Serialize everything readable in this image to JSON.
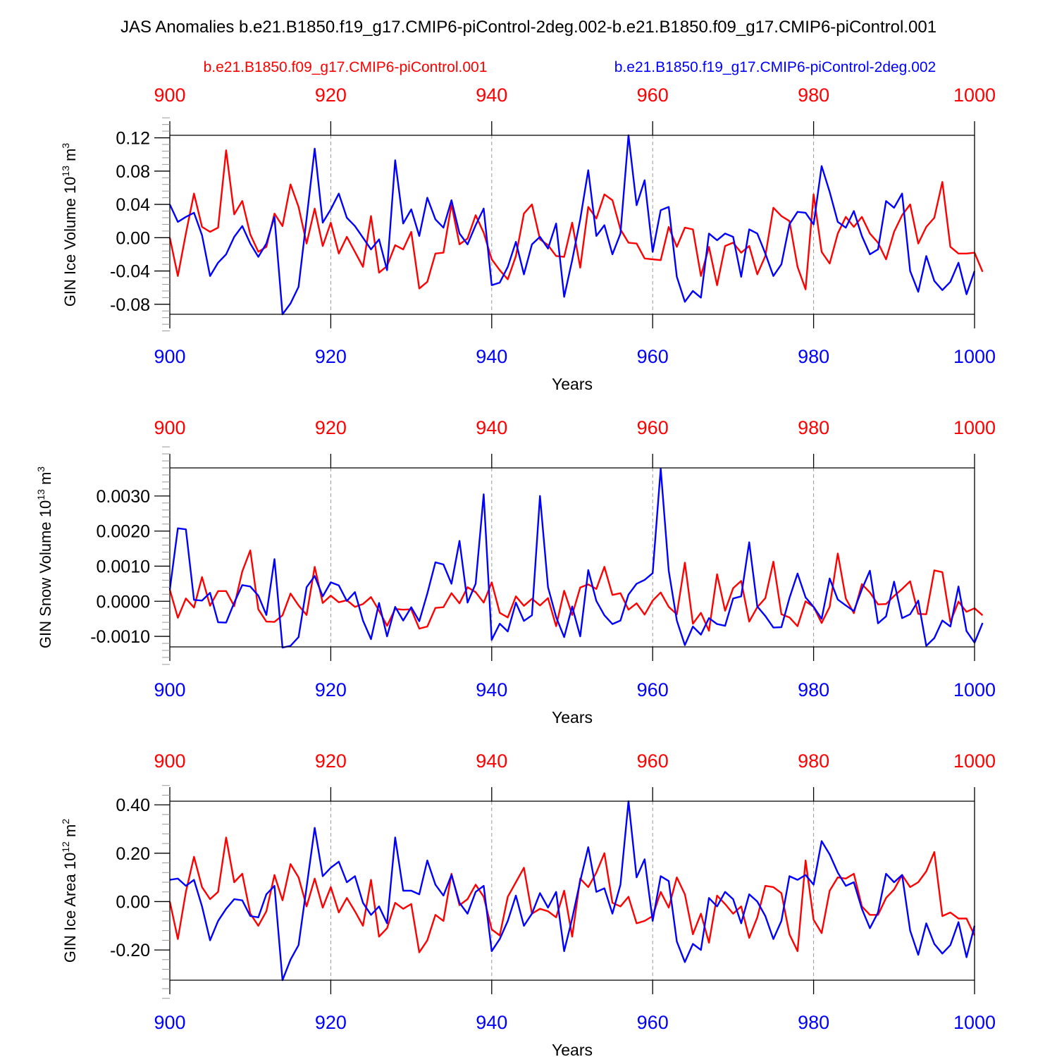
{
  "title": "JAS Anomalies b.e21.B1850.f19_g17.CMIP6-piControl-2deg.002-b.e21.B1850.f09_g17.CMIP6-piControl.001",
  "legend": {
    "red_label": "b.e21.B1850.f09_g17.CMIP6-piControl.001",
    "blue_label": "b.e21.B1850.f19_g17.CMIP6-piControl-2deg.002"
  },
  "colors": {
    "red": "#ff0000",
    "blue": "#0000ff",
    "axis": "#000000",
    "grid": "#999999"
  },
  "chart_data": [
    {
      "type": "line",
      "panel_id": "ice-volume",
      "ylabel_main": "GIN Ice Volume 10",
      "ylabel_exp": "13",
      "ylabel_unit": " m",
      "ylabel_unit_exp": "3",
      "xlabel": "Years",
      "xlim": [
        900,
        1000
      ],
      "ylim": [
        -0.092,
        0.123
      ],
      "x_ticks": [
        900,
        920,
        940,
        960,
        980,
        1000
      ],
      "x_tick_labels": [
        "900",
        "920",
        "940",
        "960",
        "980",
        "1000"
      ],
      "y_ticks": [
        -0.08,
        -0.04,
        0.0,
        0.04,
        0.08,
        0.12
      ],
      "y_tick_labels": [
        "-0.08",
        "-0.04",
        "0.00",
        "0.04",
        "0.08",
        "0.12"
      ],
      "y_minor_step": 0.008,
      "x_start": 900,
      "series": [
        {
          "name": "b.e21.B1850.f09_g17.CMIP6-piControl.001",
          "color": "red",
          "values": [
            0.0,
            -0.046,
            0.005,
            0.053,
            0.013,
            0.007,
            0.012,
            0.105,
            0.028,
            0.044,
            0.004,
            -0.017,
            -0.011,
            0.029,
            0.014,
            0.064,
            0.037,
            -0.007,
            0.035,
            -0.01,
            0.018,
            -0.019,
            0.001,
            -0.017,
            -0.035,
            0.026,
            -0.042,
            -0.034,
            -0.009,
            -0.014,
            0.007,
            -0.061,
            -0.053,
            -0.019,
            -0.018,
            0.04,
            -0.008,
            -0.001,
            0.027,
            0.006,
            -0.026,
            -0.039,
            -0.05,
            -0.022,
            0.029,
            0.04,
            -0.002,
            -0.009,
            -0.022,
            -0.023,
            0.018,
            -0.036,
            0.037,
            0.023,
            0.052,
            0.045,
            0.01,
            -0.006,
            -0.007,
            -0.025,
            -0.026,
            -0.027,
            0.013,
            -0.011,
            0.012,
            0.01,
            -0.046,
            -0.011,
            -0.057,
            -0.01,
            -0.006,
            -0.018,
            -0.01,
            -0.044,
            -0.022,
            0.036,
            0.026,
            0.02,
            -0.035,
            -0.062,
            0.052,
            -0.017,
            -0.031,
            0.005,
            0.025,
            0.013,
            0.025,
            0.005,
            -0.006,
            -0.026,
            0.007,
            0.027,
            0.04,
            -0.007,
            0.013,
            0.024,
            0.067,
            -0.011,
            -0.019,
            -0.019,
            -0.018,
            -0.041
          ]
        },
        {
          "name": "b.e21.B1850.f19_g17.CMIP6-piControl-2deg.002",
          "color": "blue",
          "values": [
            0.04,
            0.019,
            0.025,
            0.03,
            0.003,
            -0.046,
            -0.03,
            -0.02,
            0.001,
            0.014,
            -0.007,
            -0.023,
            -0.007,
            0.025,
            -0.092,
            -0.079,
            -0.059,
            0.023,
            0.107,
            0.018,
            0.034,
            0.053,
            0.024,
            0.014,
            0.0,
            -0.014,
            -0.002,
            -0.039,
            0.093,
            0.017,
            0.034,
            0.002,
            0.048,
            0.022,
            0.012,
            0.045,
            0.005,
            -0.008,
            0.015,
            0.035,
            -0.057,
            -0.054,
            -0.035,
            -0.005,
            -0.044,
            -0.008,
            0.001,
            -0.013,
            0.017,
            -0.071,
            -0.027,
            0.022,
            0.081,
            0.002,
            0.015,
            -0.02,
            0.005,
            0.123,
            0.039,
            0.069,
            -0.017,
            0.033,
            0.037,
            -0.047,
            -0.077,
            -0.064,
            -0.072,
            0.005,
            -0.003,
            0.005,
            0.001,
            -0.047,
            0.01,
            0.005,
            -0.019,
            -0.046,
            -0.032,
            0.016,
            0.031,
            0.03,
            0.016,
            0.086,
            0.055,
            0.019,
            0.012,
            0.032,
            0.002,
            -0.02,
            -0.014,
            0.044,
            0.036,
            0.053,
            -0.04,
            -0.065,
            -0.022,
            -0.052,
            -0.063,
            -0.053,
            -0.03,
            -0.068,
            -0.04
          ]
        }
      ]
    },
    {
      "type": "line",
      "panel_id": "snow-volume",
      "ylabel_main": "GIN Snow Volume 10",
      "ylabel_exp": "13",
      "ylabel_unit": " m",
      "ylabel_unit_exp": "3",
      "xlabel": "Years",
      "xlim": [
        900,
        1000
      ],
      "ylim": [
        -0.0013,
        0.0038
      ],
      "x_ticks": [
        900,
        920,
        940,
        960,
        980,
        1000
      ],
      "x_tick_labels": [
        "900",
        "920",
        "940",
        "960",
        "980",
        "1000"
      ],
      "y_ticks": [
        -0.001,
        0.0,
        0.001,
        0.002,
        0.003
      ],
      "y_tick_labels": [
        "-0.0010",
        "0.0000",
        "0.0010",
        "0.0020",
        "0.0030"
      ],
      "y_minor_step": 0.0002,
      "x_start": 900,
      "series": [
        {
          "name": "b.e21.B1850.f09_g17.CMIP6-piControl.001",
          "color": "red",
          "values": [
            0.00033,
            -0.00047,
            8e-05,
            -0.00018,
            0.00069,
            -0.00013,
            0.00029,
            0.00029,
            -0.00014,
            0.00085,
            0.00145,
            -0.00023,
            -0.00058,
            -0.00059,
            -0.0004,
            0.00022,
            -0.00012,
            -0.00039,
            0.00098,
            -5e-05,
            0.00016,
            -3e-05,
            3e-05,
            -0.00016,
            -8e-05,
            0.00012,
            -0.00027,
            -0.0007,
            -0.00022,
            -0.00024,
            -0.00023,
            -0.00078,
            -0.00072,
            -0.00019,
            -0.00017,
            0.00023,
            -6e-05,
            0.0004,
            0.00026,
            -4e-05,
            0.00054,
            -0.00033,
            -0.00046,
            0.00014,
            -0.00013,
            7e-05,
            -0.00012,
            9e-05,
            -0.00071,
            0.0003,
            -0.00039,
            0.00039,
            0.00048,
            0.00035,
            0.00098,
            0.00018,
            0.00023,
            -0.00024,
            -6e-05,
            -0.00038,
            2e-05,
            0.00025,
            -0.00016,
            -0.00037,
            0.0011,
            -0.00064,
            -0.00033,
            -0.00084,
            0.00077,
            -0.00027,
            0.00037,
            0.00058,
            -0.00058,
            -0.00017,
            9e-05,
            0.00113,
            -0.00037,
            -0.00046,
            -0.00071,
            0.0,
            -0.00016,
            -0.00062,
            -0.00016,
            0.00136,
            8e-05,
            -0.00034,
            0.00049,
            0.00025,
            -9e-05,
            -8e-05,
            0.00015,
            0.00035,
            0.00057,
            -0.00036,
            -0.00037,
            0.00088,
            0.00083,
            -0.00059,
            -1e-05,
            -0.0003,
            -0.0002,
            -0.0004
          ]
        },
        {
          "name": "b.e21.B1850.f19_g17.CMIP6-piControl-2deg.002",
          "color": "blue",
          "values": [
            0.00033,
            0.00208,
            0.00205,
            4e-05,
            2e-05,
            0.00024,
            -0.0006,
            -0.00061,
            -4e-05,
            0.00046,
            0.00042,
            0.00016,
            -0.00039,
            0.0012,
            -0.00132,
            -0.00127,
            -0.00102,
            0.0004,
            0.00072,
            0.00014,
            0.00054,
            0.00045,
            1e-05,
            0.00026,
            -0.00055,
            -0.00108,
            -5e-05,
            -0.001,
            -0.00016,
            -0.00055,
            -0.00017,
            -0.00057,
            0.00022,
            0.00111,
            0.00105,
            0.0005,
            0.00172,
            -4e-05,
            0.0005,
            0.00305,
            -0.0011,
            -0.00064,
            -0.00086,
            -4e-05,
            -0.00056,
            -0.0004,
            0.003,
            0.0004,
            -0.00045,
            -0.00102,
            -0.00015,
            -0.001,
            0.00089,
            1e-05,
            -0.0004,
            -0.00065,
            -0.00055,
            0.00019,
            0.0005,
            0.00061,
            0.0008,
            0.00378,
            0.00087,
            -0.00055,
            -0.00125,
            -0.00072,
            -0.00095,
            -0.00048,
            -0.00065,
            -0.0007,
            8e-05,
            0.00014,
            0.00168,
            -0.00015,
            -0.00042,
            -0.00075,
            -0.00074,
            9e-05,
            0.00079,
            0.00011,
            -0.00016,
            -0.0005,
            0.00065,
            5e-05,
            -0.00012,
            -0.00028,
            0.00034,
            0.00087,
            -0.00063,
            -0.00043,
            0.00056,
            -0.00048,
            -0.00037,
            2e-05,
            -0.00127,
            -0.00105,
            -0.00055,
            -0.00072,
            0.00042,
            -0.00085,
            -0.00118,
            -0.00062
          ]
        }
      ]
    },
    {
      "type": "line",
      "panel_id": "ice-area",
      "ylabel_main": "GIN Ice Area 10",
      "ylabel_exp": "12",
      "ylabel_unit": " m",
      "ylabel_unit_exp": "2",
      "xlabel": "Years",
      "xlim": [
        900,
        1000
      ],
      "ylim": [
        -0.325,
        0.415
      ],
      "x_ticks": [
        900,
        920,
        940,
        960,
        980,
        1000
      ],
      "x_tick_labels": [
        "900",
        "920",
        "940",
        "960",
        "980",
        "1000"
      ],
      "y_ticks": [
        -0.2,
        0.0,
        0.2,
        0.4
      ],
      "y_tick_labels": [
        "-0.20",
        "0.00",
        "0.20",
        "0.40"
      ],
      "y_minor_step": 0.04,
      "x_start": 900,
      "series": [
        {
          "name": "b.e21.B1850.f09_g17.CMIP6-piControl.001",
          "color": "red",
          "values": [
            0.0,
            -0.155,
            0.04,
            0.185,
            0.06,
            0.01,
            0.04,
            0.265,
            0.08,
            0.115,
            -0.05,
            -0.1,
            -0.04,
            0.11,
            0.005,
            0.155,
            0.1,
            -0.02,
            0.095,
            -0.025,
            0.06,
            -0.045,
            0.015,
            -0.04,
            -0.1,
            0.09,
            -0.145,
            -0.11,
            -0.005,
            -0.03,
            -0.01,
            -0.21,
            -0.16,
            -0.055,
            -0.08,
            0.115,
            -0.015,
            0.01,
            0.07,
            0.02,
            -0.115,
            -0.14,
            0.02,
            0.08,
            0.14,
            -0.05,
            -0.03,
            -0.04,
            -0.065,
            0.045,
            -0.145,
            0.095,
            0.06,
            0.12,
            0.2,
            -0.005,
            -0.02,
            0.02,
            -0.09,
            -0.08,
            -0.06,
            0.04,
            -0.025,
            0.1,
            0.03,
            -0.135,
            -0.05,
            -0.17,
            0.025,
            -0.01,
            -0.05,
            -0.02,
            -0.15,
            -0.065,
            0.065,
            0.06,
            0.035,
            -0.135,
            -0.205,
            0.17,
            -0.075,
            -0.13,
            0.045,
            0.1,
            0.095,
            0.115,
            -0.02,
            -0.055,
            -0.055,
            0.015,
            0.05,
            0.11,
            0.06,
            0.08,
            0.125,
            0.205,
            -0.06,
            -0.045,
            -0.07,
            -0.07,
            -0.14
          ]
        },
        {
          "name": "b.e21.B1850.f19_g17.CMIP6-piControl-2deg.002",
          "color": "blue",
          "values": [
            0.09,
            0.095,
            0.065,
            0.09,
            -0.02,
            -0.16,
            -0.08,
            -0.03,
            0.01,
            0.005,
            -0.06,
            -0.065,
            0.03,
            0.065,
            -0.325,
            -0.24,
            -0.18,
            0.06,
            0.305,
            0.105,
            0.14,
            0.165,
            0.08,
            0.105,
            -0.005,
            -0.055,
            -0.02,
            -0.09,
            0.265,
            0.045,
            0.045,
            0.03,
            0.17,
            0.07,
            0.025,
            0.11,
            -0.005,
            -0.05,
            0.04,
            0.065,
            -0.205,
            -0.155,
            -0.08,
            0.025,
            -0.1,
            -0.05,
            0.035,
            -0.025,
            0.04,
            -0.205,
            -0.07,
            0.085,
            0.225,
            0.04,
            0.055,
            -0.05,
            0.07,
            0.415,
            0.1,
            0.175,
            -0.08,
            0.105,
            0.085,
            -0.165,
            -0.25,
            -0.175,
            -0.2,
            0.015,
            -0.02,
            0.04,
            0.01,
            -0.09,
            0.03,
            0.0,
            -0.06,
            -0.155,
            -0.08,
            0.105,
            0.09,
            0.11,
            0.07,
            0.25,
            0.195,
            0.12,
            0.065,
            0.08,
            -0.03,
            -0.11,
            -0.045,
            0.115,
            0.08,
            0.11,
            -0.12,
            -0.22,
            -0.09,
            -0.175,
            -0.215,
            -0.18,
            -0.085,
            -0.23,
            -0.1
          ]
        }
      ]
    }
  ]
}
